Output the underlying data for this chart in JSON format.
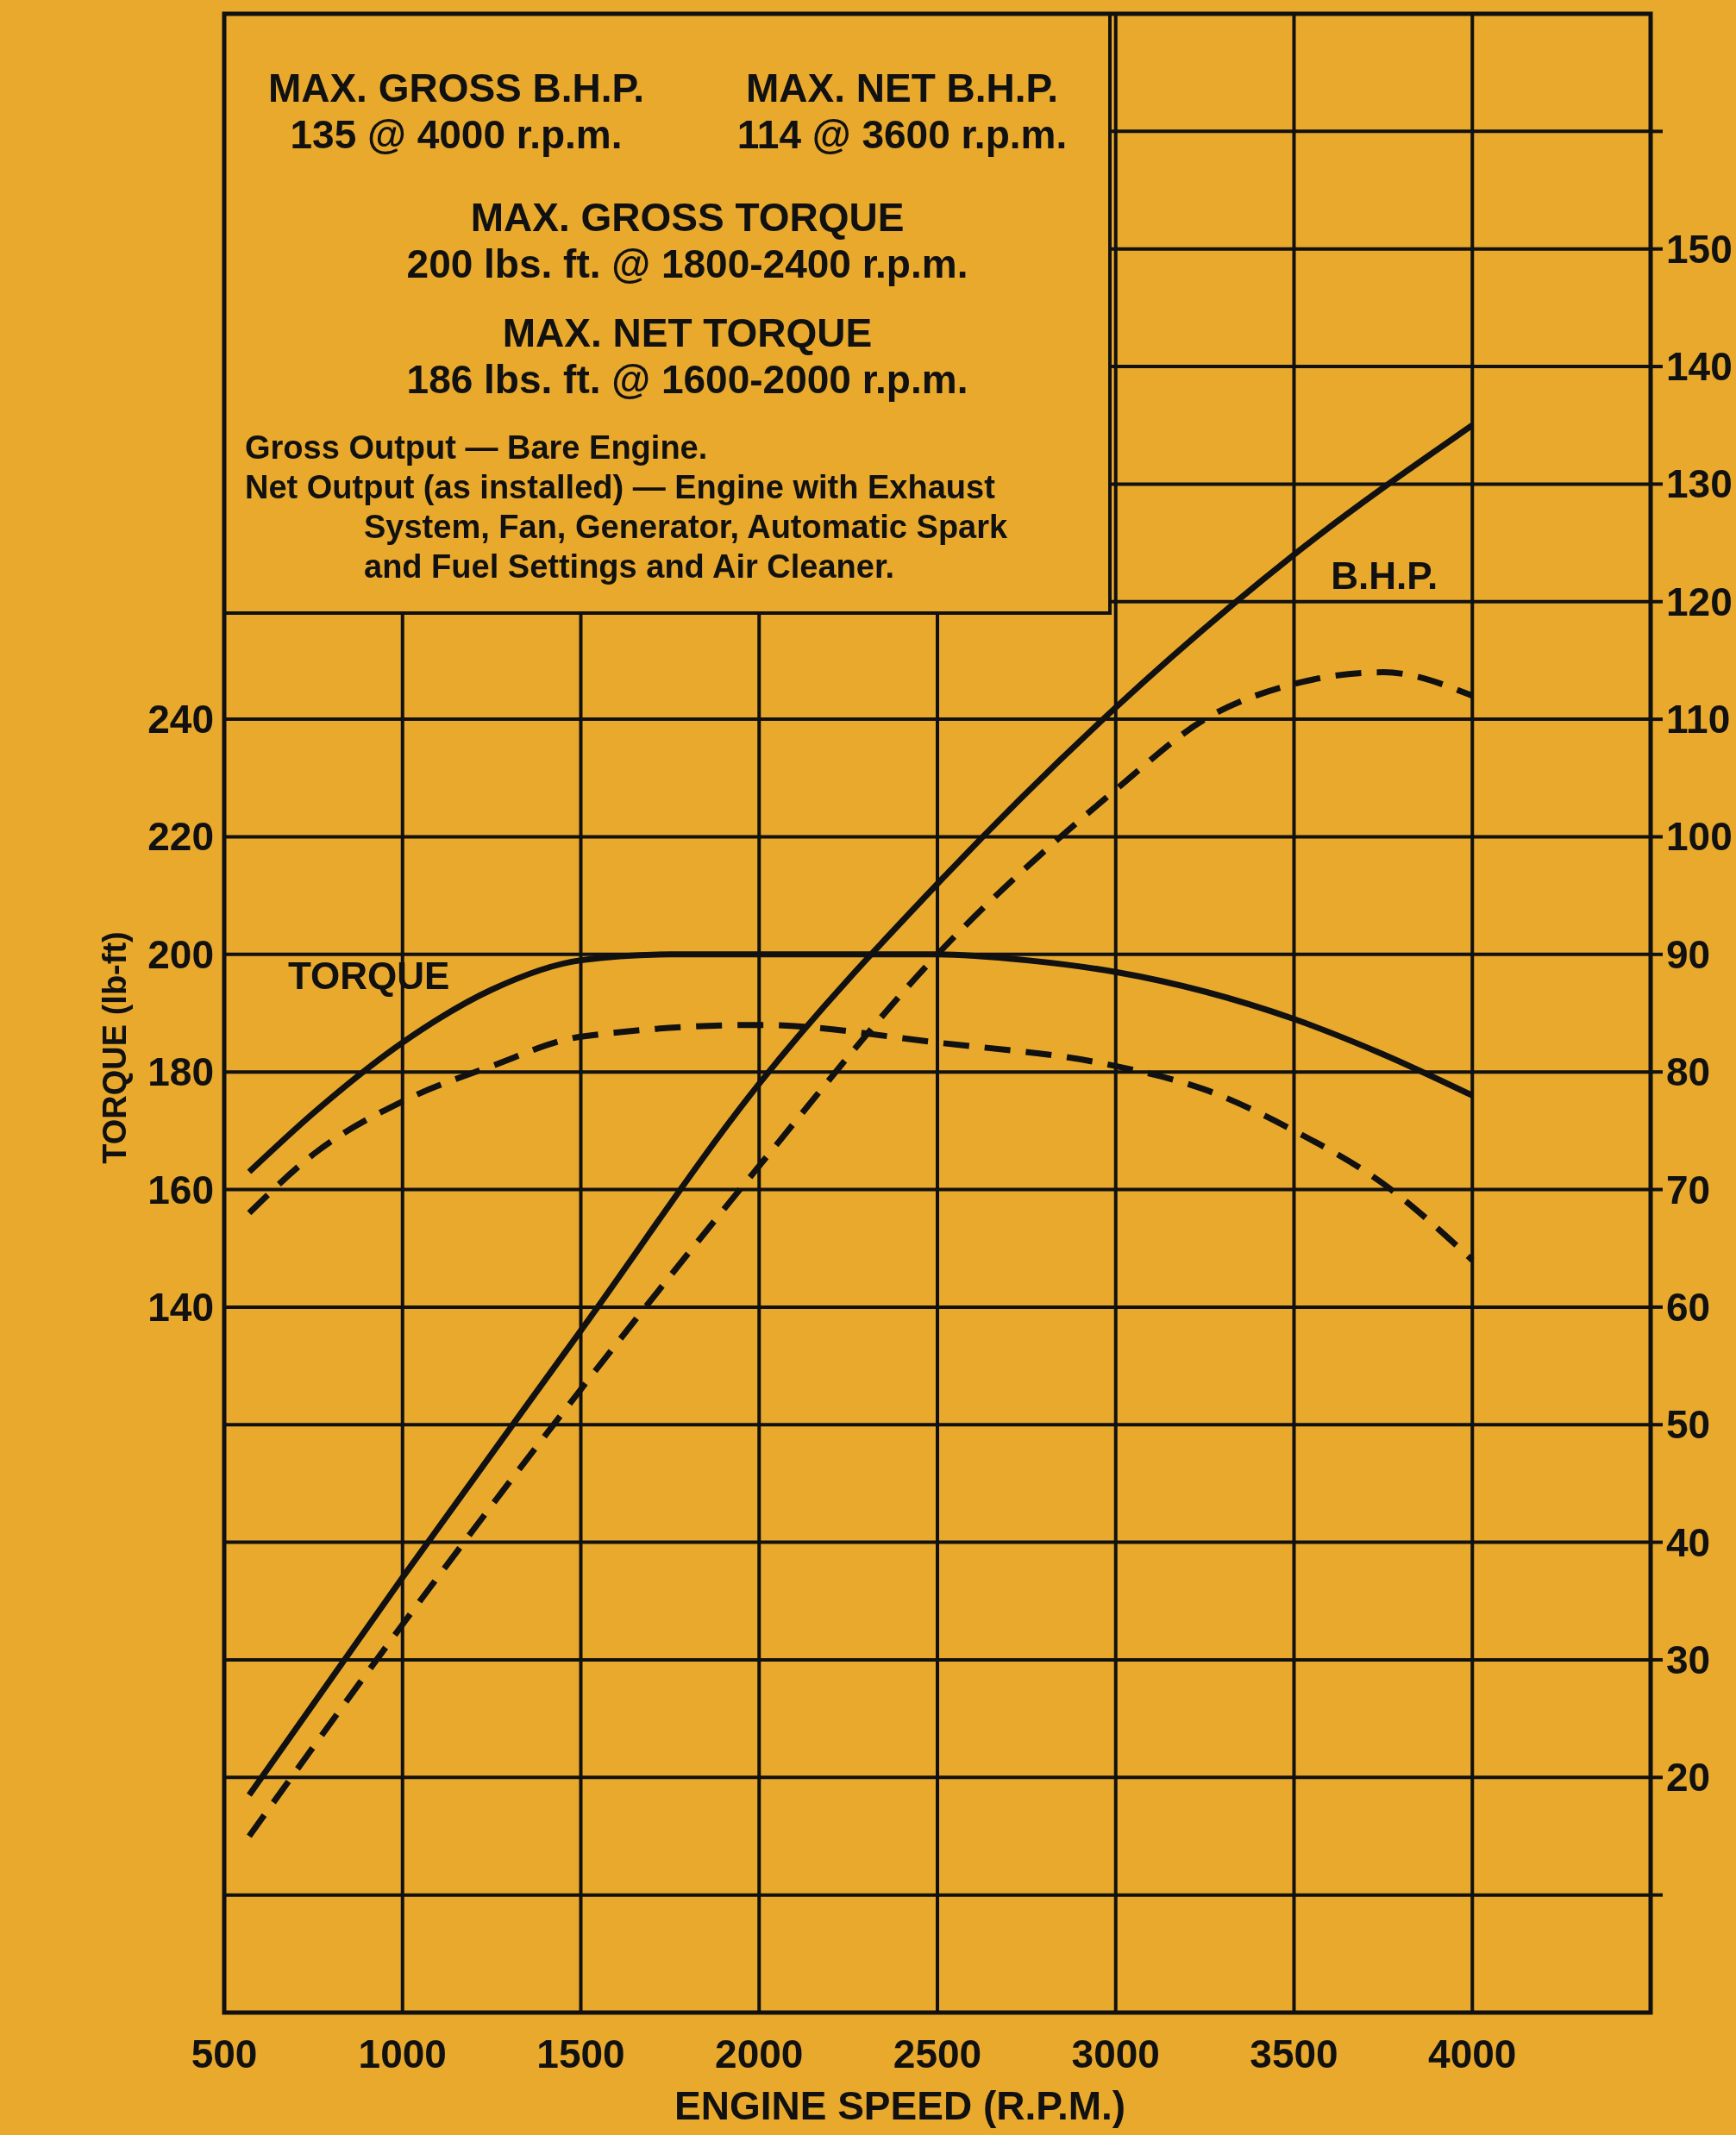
{
  "chart_data": {
    "type": "line",
    "annotations": [
      "MAX. GROSS B.H.P.",
      "135 @ 4000 r.p.m.",
      "MAX. NET B.H.P.",
      "114 @ 3600 r.p.m.",
      "MAX. GROSS TORQUE",
      "200 lbs. ft. @ 1800-2400 r.p.m.",
      "MAX. NET TORQUE",
      "186 lbs. ft. @ 1600-2000 r.p.m.",
      "Gross Output — Bare Engine.",
      "Net Output (as installed) — Engine with Exhaust",
      "System, Fan, Generator, Automatic Spark",
      "and Fuel Settings and Air Cleaner."
    ],
    "xlabel": "ENGINE SPEED (R.P.M.)",
    "ylabel": "TORQUE (lb-ft)",
    "xlim": [
      500,
      4500
    ],
    "xticks": [
      500,
      1000,
      1500,
      2000,
      2500,
      3000,
      3500,
      4000
    ],
    "ylim": [
      20,
      360
    ],
    "yticks": [
      140,
      160,
      180,
      200,
      220,
      240
    ],
    "y2lim": [
      0,
      170
    ],
    "y2ticks": [
      {
        "value": 10,
        "label": null
      },
      20,
      30,
      40,
      50,
      60,
      70,
      80,
      90,
      100,
      110,
      120,
      130,
      140,
      150,
      {
        "value": 160,
        "label": null
      }
    ],
    "grid": true,
    "series": [
      {
        "name": "TORQUE",
        "color": "#111111",
        "line_style": "solid",
        "axis": "y",
        "x": [
          570,
          750,
          1000,
          1250,
          1500,
          1750,
          2000,
          2500,
          2750,
          3000,
          3500,
          3750,
          4000
        ],
        "values": [
          163,
          173,
          185,
          194,
          199,
          200,
          200,
          200,
          199,
          197,
          189,
          183,
          176
        ]
      },
      {
        "color": "#111111",
        "line_style": "dashed",
        "axis": "y",
        "x": [
          570,
          750,
          1000,
          1250,
          1500,
          2000,
          2500,
          3000,
          3250,
          3500,
          3750,
          4000
        ],
        "values": [
          156,
          166,
          175,
          181,
          186,
          188,
          185,
          181,
          177,
          170,
          161,
          148
        ]
      },
      {
        "name": "B.H.P.",
        "color": "#111111",
        "line_style": "solid",
        "axis": "y2",
        "x": [
          570,
          1000,
          1500,
          2000,
          2500,
          3000,
          3500,
          4000
        ],
        "values": [
          18.5,
          37,
          58,
          79,
          96,
          111,
          124,
          135
        ]
      },
      {
        "color": "#111111",
        "line_style": "dashed",
        "axis": "y2",
        "x": [
          570,
          1000,
          1500,
          2000,
          2500,
          3000,
          3250,
          3500,
          3750,
          4000
        ],
        "values": [
          15,
          33,
          53,
          72,
          90,
          104,
          110,
          113,
          114,
          112
        ]
      }
    ]
  }
}
